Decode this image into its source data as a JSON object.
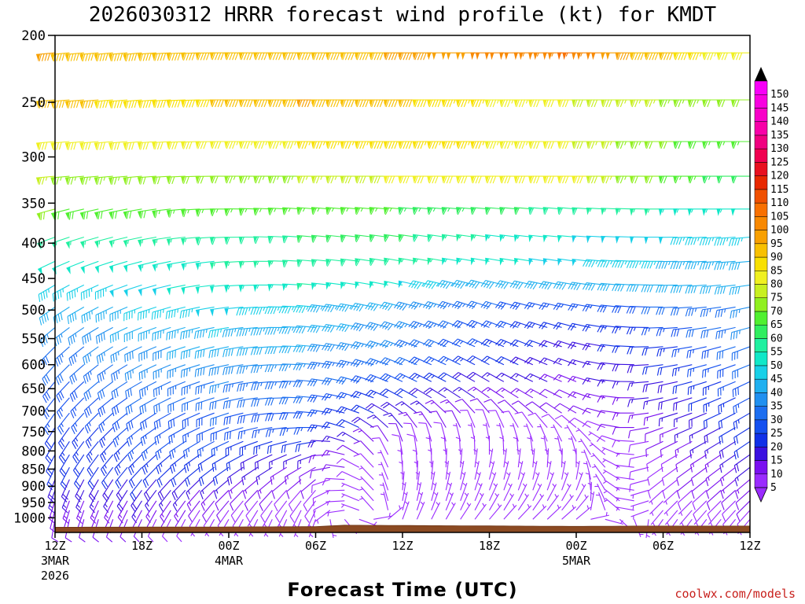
{
  "chart_data": {
    "type": "wind-barb-profile",
    "title": "2026030312 HRRR forecast wind profile (kt) for KMDT",
    "xlabel": "Forecast Time (UTC)",
    "ylabel": "",
    "y_scale": "log-pressure",
    "y_range_hpa": [
      200,
      1050
    ],
    "x_range_hours": [
      0,
      48
    ],
    "pressure_ticks": [
      200,
      250,
      300,
      350,
      400,
      450,
      500,
      550,
      600,
      650,
      700,
      750,
      800,
      850,
      900,
      950,
      1000
    ],
    "x_ticks": [
      {
        "hour": 0,
        "label": "12Z",
        "date": "3MAR",
        "year": "2026"
      },
      {
        "hour": 6,
        "label": "18Z",
        "date": "",
        "year": ""
      },
      {
        "hour": 12,
        "label": "00Z",
        "date": "4MAR",
        "year": ""
      },
      {
        "hour": 18,
        "label": "06Z",
        "date": "",
        "year": ""
      },
      {
        "hour": 24,
        "label": "12Z",
        "date": "",
        "year": ""
      },
      {
        "hour": 30,
        "label": "18Z",
        "date": "",
        "year": ""
      },
      {
        "hour": 36,
        "label": "00Z",
        "date": "5MAR",
        "year": ""
      },
      {
        "hour": 42,
        "label": "06Z",
        "date": "",
        "year": ""
      },
      {
        "hour": 48,
        "label": "12Z",
        "date": "",
        "year": ""
      }
    ],
    "colorbar": {
      "levels": [
        5,
        10,
        15,
        20,
        25,
        30,
        35,
        40,
        45,
        50,
        55,
        60,
        65,
        70,
        75,
        80,
        85,
        90,
        95,
        100,
        105,
        110,
        115,
        120,
        125,
        130,
        135,
        140,
        145,
        150
      ],
      "colors": [
        "#9a2bff",
        "#7a10f0",
        "#3a10e0",
        "#1030e8",
        "#1450f0",
        "#1c6ef0",
        "#2090f0",
        "#20b0f0",
        "#18d0e8",
        "#10e8c8",
        "#20f0a0",
        "#30ee60",
        "#50f030",
        "#90f020",
        "#c8f020",
        "#f0f020",
        "#f8e000",
        "#f8c000",
        "#f8a000",
        "#f88800",
        "#f87000",
        "#f05000",
        "#e82800",
        "#e81020",
        "#f00050",
        "#f00080",
        "#f800a8",
        "#f800c8",
        "#f800e0",
        "#f800f8"
      ]
    },
    "surface_pressure_hpa": {
      "hours": [
        0,
        12,
        18,
        20,
        24,
        36,
        40,
        48
      ],
      "values": [
        1032,
        1031,
        1030,
        1025,
        1026,
        1029,
        1028,
        1028
      ]
    },
    "levels_hpa": [
      212,
      248,
      285,
      320,
      357,
      392,
      425,
      460,
      495,
      530,
      565,
      600,
      635,
      670,
      705,
      740,
      775,
      810,
      845,
      880,
      912,
      945,
      975,
      1005
    ],
    "speed_kt": {
      "hours": [
        0,
        6,
        12,
        18,
        24,
        30,
        36,
        42,
        48
      ],
      "rows": [
        [
          95,
          92,
          90,
          92,
          95,
          100,
          105,
          92,
          80
        ],
        [
          92,
          88,
          90,
          95,
          92,
          85,
          80,
          75,
          70
        ],
        [
          82,
          80,
          82,
          85,
          88,
          85,
          80,
          72,
          65
        ],
        [
          75,
          72,
          72,
          75,
          80,
          82,
          82,
          70,
          60
        ],
        [
          70,
          68,
          65,
          65,
          65,
          62,
          58,
          55,
          52
        ],
        [
          55,
          55,
          58,
          60,
          62,
          55,
          50,
          48,
          45
        ],
        [
          50,
          52,
          55,
          58,
          58,
          52,
          48,
          45,
          42
        ],
        [
          45,
          48,
          52,
          55,
          50,
          42,
          40,
          40,
          40
        ],
        [
          40,
          45,
          48,
          45,
          40,
          32,
          25,
          30,
          35
        ],
        [
          35,
          42,
          45,
          42,
          38,
          28,
          20,
          25,
          35
        ],
        [
          32,
          38,
          42,
          40,
          35,
          25,
          18,
          22,
          32
        ],
        [
          30,
          35,
          38,
          35,
          32,
          22,
          16,
          20,
          30
        ],
        [
          28,
          32,
          35,
          32,
          28,
          18,
          14,
          18,
          28
        ],
        [
          25,
          30,
          32,
          30,
          22,
          14,
          12,
          16,
          26
        ],
        [
          25,
          28,
          30,
          28,
          18,
          10,
          10,
          14,
          24
        ],
        [
          22,
          26,
          28,
          25,
          15,
          8,
          8,
          12,
          22
        ],
        [
          22,
          25,
          25,
          20,
          10,
          6,
          6,
          10,
          20
        ],
        [
          20,
          24,
          22,
          15,
          8,
          5,
          6,
          8,
          18
        ],
        [
          20,
          22,
          20,
          12,
          6,
          5,
          5,
          8,
          15
        ],
        [
          18,
          20,
          15,
          10,
          6,
          5,
          5,
          8,
          14
        ],
        [
          16,
          18,
          12,
          8,
          5,
          5,
          5,
          6,
          12
        ],
        [
          14,
          15,
          10,
          8,
          5,
          5,
          5,
          6,
          10
        ],
        [
          12,
          12,
          8,
          6,
          5,
          5,
          5,
          5,
          8
        ],
        [
          10,
          10,
          6,
          5,
          5,
          5,
          5,
          5,
          6
        ]
      ]
    },
    "direction_deg": {
      "hours": [
        0,
        6,
        12,
        18,
        24,
        30,
        36,
        42,
        48
      ],
      "rows": [
        [
          265,
          265,
          270,
          270,
          270,
          270,
          270,
          270,
          270
        ],
        [
          265,
          265,
          270,
          270,
          270,
          270,
          270,
          270,
          270
        ],
        [
          265,
          265,
          270,
          270,
          270,
          270,
          270,
          270,
          270
        ],
        [
          265,
          265,
          270,
          270,
          270,
          270,
          270,
          270,
          270
        ],
        [
          255,
          260,
          270,
          275,
          275,
          275,
          275,
          270,
          270
        ],
        [
          250,
          258,
          268,
          275,
          278,
          278,
          275,
          270,
          265
        ],
        [
          245,
          255,
          265,
          275,
          280,
          280,
          278,
          270,
          265
        ],
        [
          240,
          252,
          265,
          275,
          282,
          285,
          280,
          270,
          262
        ],
        [
          235,
          250,
          262,
          275,
          285,
          288,
          282,
          270,
          258
        ],
        [
          230,
          248,
          260,
          275,
          288,
          292,
          285,
          268,
          255
        ],
        [
          225,
          245,
          258,
          275,
          290,
          295,
          288,
          265,
          250
        ],
        [
          222,
          242,
          258,
          275,
          292,
          298,
          290,
          262,
          248
        ],
        [
          220,
          240,
          256,
          275,
          295,
          300,
          292,
          260,
          245
        ],
        [
          218,
          238,
          255,
          275,
          298,
          305,
          295,
          258,
          242
        ],
        [
          215,
          235,
          252,
          275,
          305,
          320,
          300,
          255,
          240
        ],
        [
          212,
          232,
          250,
          270,
          320,
          340,
          310,
          250,
          238
        ],
        [
          210,
          228,
          245,
          260,
          340,
          350,
          330,
          245,
          236
        ],
        [
          208,
          225,
          240,
          250,
          350,
          0,
          345,
          240,
          235
        ],
        [
          205,
          222,
          235,
          240,
          355,
          10,
          0,
          235,
          232
        ],
        [
          202,
          218,
          230,
          230,
          0,
          15,
          10,
          232,
          230
        ],
        [
          200,
          215,
          225,
          220,
          5,
          20,
          20,
          228,
          228
        ],
        [
          198,
          212,
          220,
          215,
          10,
          25,
          30,
          225,
          225
        ],
        [
          195,
          208,
          215,
          205,
          15,
          30,
          40,
          220,
          222
        ],
        [
          190,
          205,
          210,
          200,
          20,
          40,
          50,
          215,
          220
        ]
      ]
    },
    "credit": "coolwx.com/models"
  }
}
